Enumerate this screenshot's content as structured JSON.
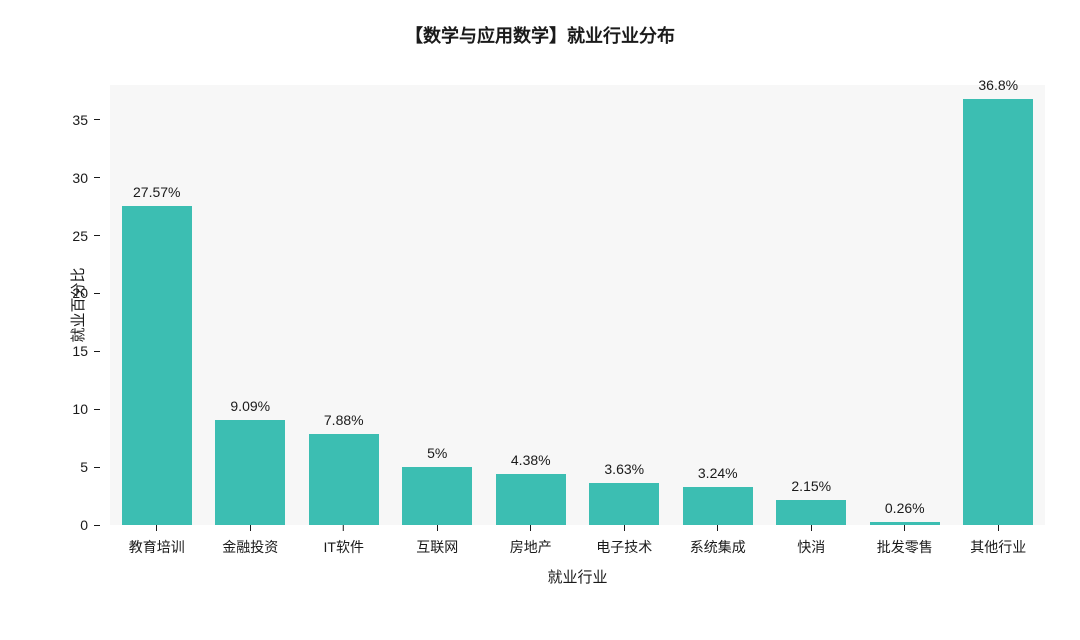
{
  "title": "【数学与应用数学】就业行业分布",
  "chart": {
    "type": "bar",
    "ylabel": "就业百分比",
    "xlabel": "就业行业",
    "background_color": "#f7f7f7",
    "page_background": "#ffffff",
    "bar_color": "#3cbeb2",
    "text_color": "#1a1a1a",
    "title_fontsize": 18,
    "label_fontsize": 15,
    "tick_fontsize": 14,
    "value_fontsize": 14,
    "ylim": [
      0,
      38
    ],
    "yticks": [
      0,
      5,
      10,
      15,
      20,
      25,
      30,
      35
    ],
    "bar_width_ratio": 0.75,
    "categories": [
      "教育培训",
      "金融投资",
      "IT软件",
      "互联网",
      "房地产",
      "电子技术",
      "系统集成",
      "快消",
      "批发零售",
      "其他行业"
    ],
    "values": [
      27.57,
      9.09,
      7.88,
      5,
      4.38,
      3.63,
      3.24,
      2.15,
      0.26,
      36.8
    ],
    "value_labels": [
      "27.57%",
      "9.09%",
      "7.88%",
      "5%",
      "4.38%",
      "3.63%",
      "3.24%",
      "2.15%",
      "0.26%",
      "36.8%"
    ]
  }
}
